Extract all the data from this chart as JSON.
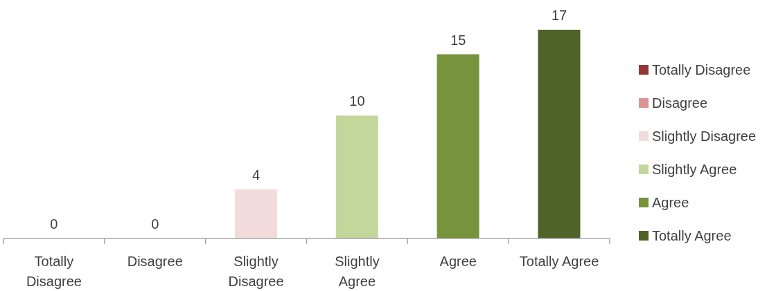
{
  "chart_data": {
    "type": "bar",
    "categories": [
      "Totally Disagree",
      "Disagree",
      "Slightly Disagree",
      "Slightly Agree",
      "Agree",
      "Totally Agree"
    ],
    "series": [
      {
        "name": "Totally Disagree",
        "color": "#943634",
        "values": [
          0,
          null,
          null,
          null,
          null,
          null
        ]
      },
      {
        "name": "Disagree",
        "color": "#d99594",
        "values": [
          null,
          0,
          null,
          null,
          null,
          null
        ]
      },
      {
        "name": "Slightly Disagree",
        "color": "#f2dcdb",
        "values": [
          null,
          null,
          4,
          null,
          null,
          null
        ]
      },
      {
        "name": "Slightly Agree",
        "color": "#c3d69b",
        "values": [
          null,
          null,
          null,
          10,
          null,
          null
        ]
      },
      {
        "name": "Agree",
        "color": "#77933c",
        "values": [
          null,
          null,
          null,
          null,
          15,
          null
        ]
      },
      {
        "name": "Totally Agree",
        "color": "#4f6228",
        "values": [
          null,
          null,
          null,
          null,
          null,
          17
        ]
      }
    ],
    "stacked": true,
    "data_labels": true,
    "legend": "right"
  }
}
